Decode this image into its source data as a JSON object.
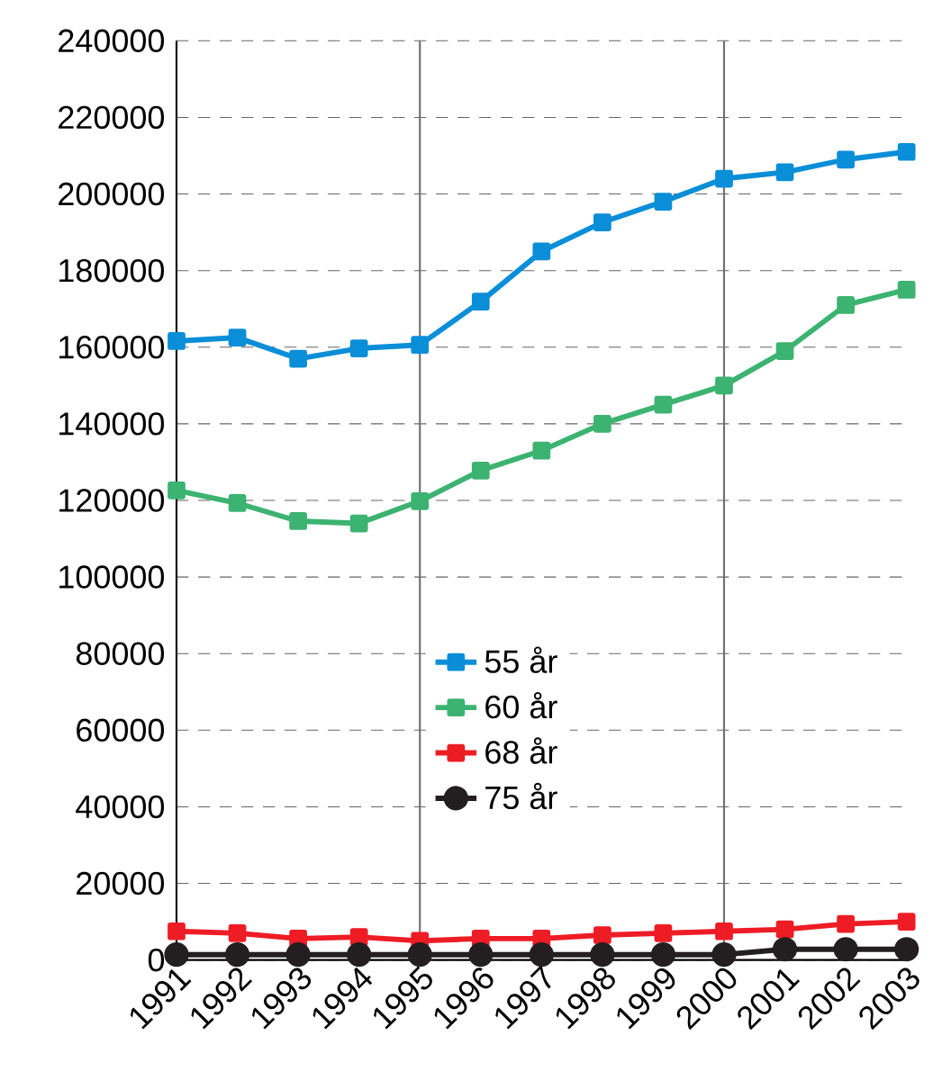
{
  "chart_data": {
    "type": "line",
    "x": [
      1991,
      1992,
      1993,
      1994,
      1995,
      1996,
      1997,
      1998,
      1999,
      2000,
      2001,
      2002,
      2003
    ],
    "xlim": [
      1991,
      2003
    ],
    "xticks": [
      1991,
      1992,
      1993,
      1994,
      1995,
      1996,
      1997,
      1998,
      1999,
      2000,
      2001,
      2002,
      2003
    ],
    "ylim": [
      0,
      240000
    ],
    "yticks": [
      0,
      20000,
      40000,
      60000,
      80000,
      100000,
      120000,
      140000,
      160000,
      180000,
      200000,
      220000,
      240000
    ],
    "grid": "y",
    "legend": "center",
    "ref_lines": [
      {
        "axis": "x",
        "value": 1995,
        "color": "#707070"
      },
      {
        "axis": "x",
        "value": 2000,
        "color": "#707070"
      }
    ],
    "series": [
      {
        "name": "55 år",
        "color": "#0a8ed8",
        "marker": "square",
        "values": [
          161600,
          162500,
          157000,
          159700,
          160600,
          171900,
          185000,
          192600,
          198000,
          204000,
          205700,
          209000,
          211000
        ]
      },
      {
        "name": "60 år",
        "color": "#3cb371",
        "marker": "square",
        "values": [
          122600,
          119300,
          114600,
          114000,
          119800,
          127800,
          133000,
          140000,
          145000,
          150000,
          159000,
          171000,
          175000
        ]
      },
      {
        "name": "68 år",
        "color": "#ee1c25",
        "marker": "square",
        "values": [
          7500,
          7000,
          5600,
          6000,
          5000,
          5600,
          5600,
          6500,
          7000,
          7500,
          8000,
          9400,
          10000
        ]
      },
      {
        "name": "75 år",
        "color": "#231f20",
        "marker": "circle",
        "values": [
          1400,
          1400,
          1400,
          1400,
          1400,
          1400,
          1400,
          1400,
          1400,
          1400,
          2800,
          2800,
          2800
        ]
      }
    ]
  }
}
